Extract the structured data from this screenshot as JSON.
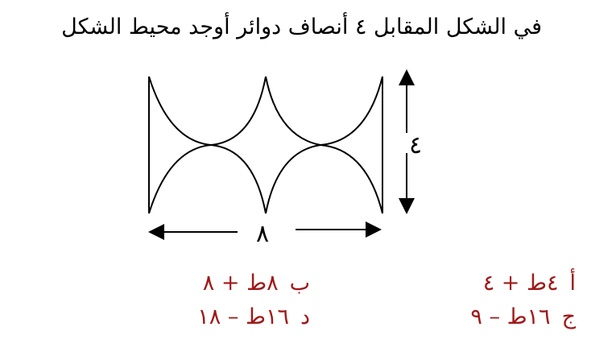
{
  "question": {
    "text": "في الشكل المقابل ٤ أنصاف دوائر أوجد محيط الشكل"
  },
  "figure": {
    "height_label": "٤",
    "width_label": "٨"
  },
  "answer_color": "#a01818",
  "options": [
    {
      "letter": "أ",
      "value": "٤ط + ٤"
    },
    {
      "letter": "ب",
      "value": "٨ط + ٨"
    },
    {
      "letter": "ج",
      "value": "١٦ط – ٩"
    },
    {
      "letter": "د",
      "value": "١٦ط – ١٨"
    }
  ]
}
